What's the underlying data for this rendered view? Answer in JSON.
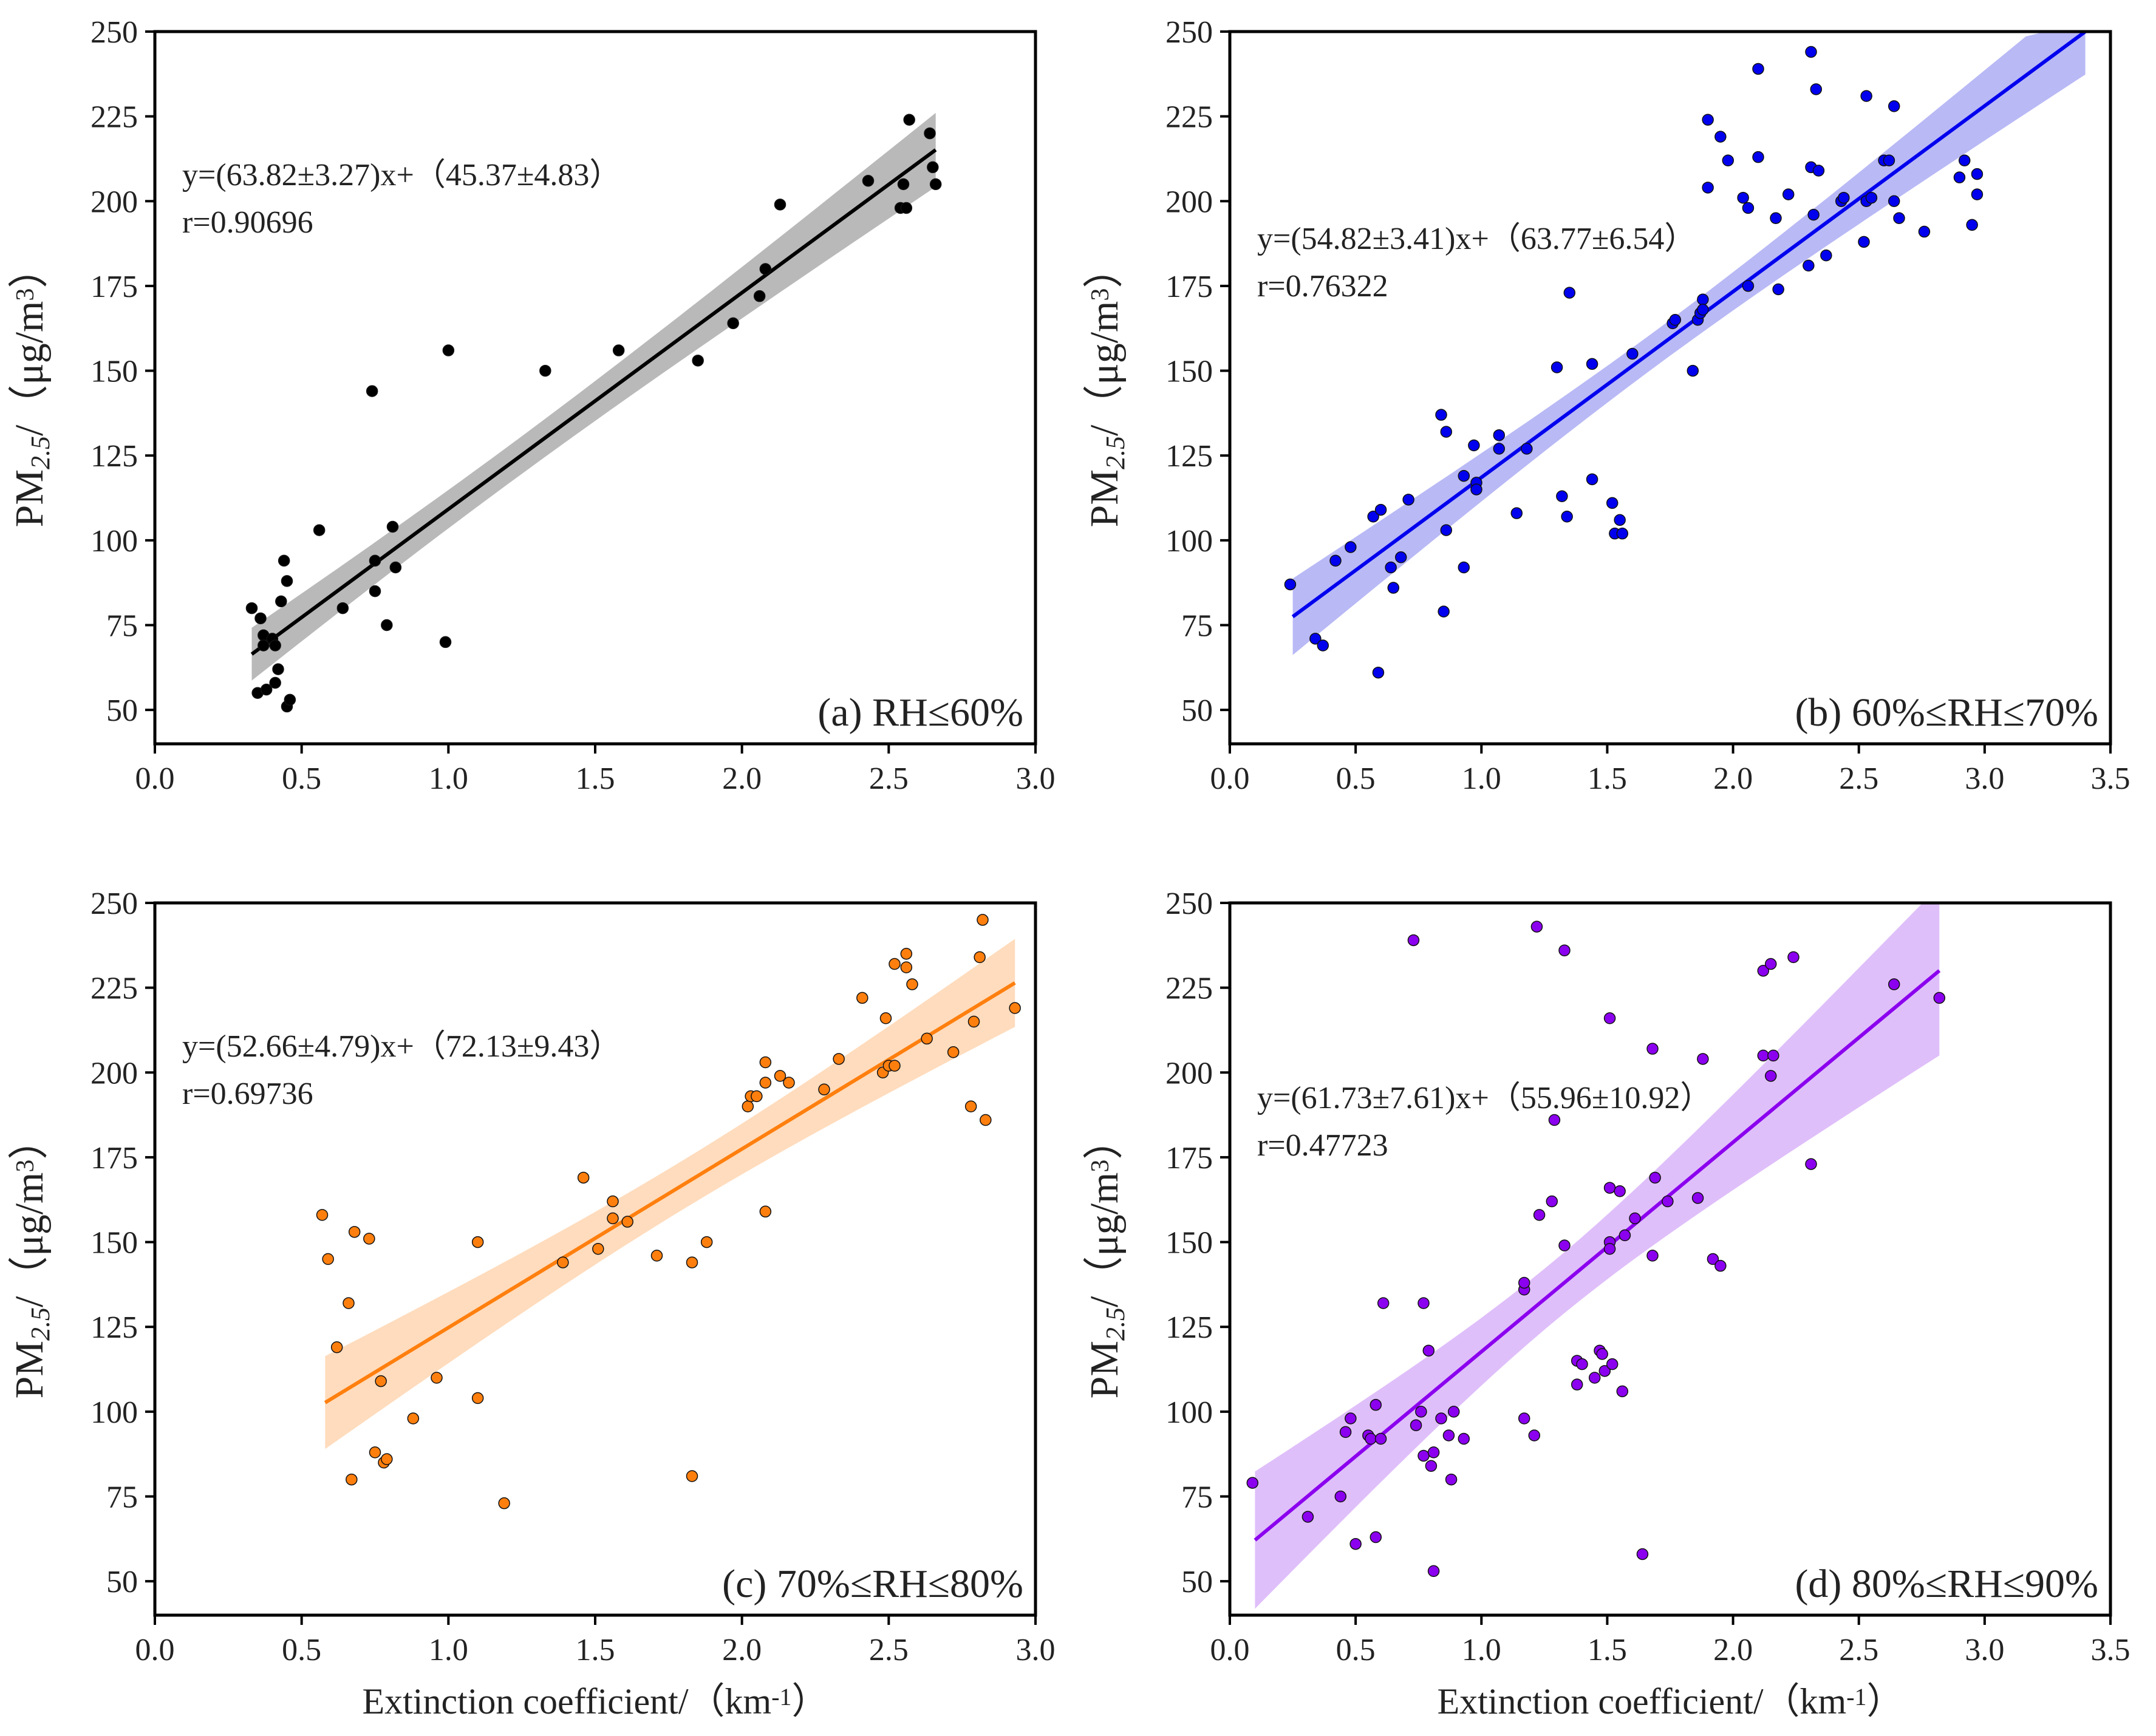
{
  "chart_data": [
    {
      "id": "a",
      "type": "scatter",
      "label": "(a) RH≤60%",
      "color": "#000000",
      "band_color": "#7f7f7f",
      "equation": "y=(63.82±3.27)x+（45.37±4.83）",
      "r_text": "r=0.90696",
      "slope": 63.82,
      "intercept": 45.37,
      "fit_range": [
        0.33,
        2.66
      ],
      "xlim": [
        0,
        3.0
      ],
      "ylim": [
        40,
        250
      ],
      "xticks": [
        0.0,
        0.5,
        1.0,
        1.5,
        2.0,
        2.5,
        3.0
      ],
      "yticks": [
        50,
        75,
        100,
        125,
        150,
        175,
        200,
        225,
        250
      ],
      "ylabel": "PM2.5/（μg/m3）",
      "xlabel": "",
      "points": [
        [
          0.33,
          80
        ],
        [
          0.35,
          55
        ],
        [
          0.36,
          77
        ],
        [
          0.37,
          72
        ],
        [
          0.37,
          69
        ],
        [
          0.38,
          56
        ],
        [
          0.4,
          71
        ],
        [
          0.41,
          58
        ],
        [
          0.41,
          69
        ],
        [
          0.42,
          62
        ],
        [
          0.43,
          82
        ],
        [
          0.44,
          94
        ],
        [
          0.45,
          51
        ],
        [
          0.45,
          88
        ],
        [
          0.46,
          53
        ],
        [
          0.56,
          103
        ],
        [
          0.64,
          80
        ],
        [
          0.74,
          144
        ],
        [
          0.75,
          94
        ],
        [
          0.75,
          85
        ],
        [
          0.79,
          75
        ],
        [
          0.81,
          104
        ],
        [
          0.82,
          92
        ],
        [
          0.99,
          70
        ],
        [
          1.0,
          156
        ],
        [
          1.33,
          150
        ],
        [
          1.58,
          156
        ],
        [
          1.85,
          153
        ],
        [
          1.97,
          164
        ],
        [
          2.06,
          172
        ],
        [
          2.08,
          180
        ],
        [
          2.13,
          199
        ],
        [
          2.43,
          206
        ],
        [
          2.54,
          198
        ],
        [
          2.55,
          205
        ],
        [
          2.56,
          198
        ],
        [
          2.57,
          224
        ],
        [
          2.64,
          220
        ],
        [
          2.65,
          210
        ],
        [
          2.66,
          205
        ]
      ]
    },
    {
      "id": "b",
      "type": "scatter",
      "label": "(b) 60%≤RH≤70%",
      "color": "#0000ee",
      "band_color": "#7f7fee",
      "equation": "y=(54.82±3.41)x+（63.77±6.54）",
      "r_text": "r=0.76322",
      "slope": 54.82,
      "intercept": 63.77,
      "fit_range": [
        0.25,
        3.4
      ],
      "xlim": [
        0,
        3.5
      ],
      "ylim": [
        40,
        250
      ],
      "xticks": [
        0.0,
        0.5,
        1.0,
        1.5,
        2.0,
        2.5,
        3.0,
        3.5
      ],
      "yticks": [
        50,
        75,
        100,
        125,
        150,
        175,
        200,
        225,
        250
      ],
      "ylabel": "PM2.5/（μg/m3）",
      "xlabel": "",
      "points": [
        [
          0.24,
          87
        ],
        [
          0.34,
          71
        ],
        [
          0.37,
          69
        ],
        [
          0.42,
          94
        ],
        [
          0.48,
          98
        ],
        [
          0.57,
          107
        ],
        [
          0.59,
          61
        ],
        [
          0.6,
          109
        ],
        [
          0.64,
          92
        ],
        [
          0.65,
          86
        ],
        [
          0.68,
          95
        ],
        [
          0.71,
          112
        ],
        [
          0.84,
          137
        ],
        [
          0.85,
          79
        ],
        [
          0.86,
          103
        ],
        [
          0.86,
          132
        ],
        [
          0.93,
          92
        ],
        [
          0.93,
          119
        ],
        [
          0.97,
          128
        ],
        [
          0.98,
          117
        ],
        [
          0.98,
          115
        ],
        [
          1.07,
          127
        ],
        [
          1.07,
          131
        ],
        [
          1.14,
          108
        ],
        [
          1.18,
          127
        ],
        [
          1.3,
          151
        ],
        [
          1.32,
          113
        ],
        [
          1.34,
          107
        ],
        [
          1.35,
          173
        ],
        [
          1.44,
          152
        ],
        [
          1.44,
          118
        ],
        [
          1.52,
          111
        ],
        [
          1.53,
          102
        ],
        [
          1.55,
          106
        ],
        [
          1.56,
          102
        ],
        [
          1.6,
          155
        ],
        [
          1.76,
          164
        ],
        [
          1.77,
          165
        ],
        [
          1.84,
          150
        ],
        [
          1.86,
          165
        ],
        [
          1.87,
          167
        ],
        [
          1.88,
          171
        ],
        [
          1.88,
          168
        ],
        [
          1.9,
          204
        ],
        [
          1.9,
          224
        ],
        [
          1.95,
          219
        ],
        [
          1.98,
          212
        ],
        [
          2.04,
          201
        ],
        [
          2.06,
          198
        ],
        [
          2.06,
          175
        ],
        [
          2.1,
          239
        ],
        [
          2.1,
          213
        ],
        [
          2.17,
          195
        ],
        [
          2.18,
          174
        ],
        [
          2.22,
          202
        ],
        [
          2.3,
          181
        ],
        [
          2.31,
          244
        ],
        [
          2.31,
          210
        ],
        [
          2.32,
          196
        ],
        [
          2.33,
          233
        ],
        [
          2.34,
          209
        ],
        [
          2.37,
          184
        ],
        [
          2.43,
          200
        ],
        [
          2.44,
          201
        ],
        [
          2.52,
          188
        ],
        [
          2.53,
          200
        ],
        [
          2.53,
          231
        ],
        [
          2.55,
          201
        ],
        [
          2.6,
          212
        ],
        [
          2.62,
          212
        ],
        [
          2.64,
          228
        ],
        [
          2.64,
          200
        ],
        [
          2.66,
          195
        ],
        [
          2.76,
          191
        ],
        [
          2.9,
          207
        ],
        [
          2.92,
          212
        ],
        [
          2.95,
          193
        ],
        [
          2.97,
          208
        ],
        [
          2.97,
          202
        ]
      ]
    },
    {
      "id": "c",
      "type": "scatter",
      "label": "(c) 70%≤RH≤80%",
      "color": "#ff7f0e",
      "band_color": "#ffbf86",
      "equation": "y=(52.66±4.79)x+（72.13±9.43）",
      "r_text": "r=0.69736",
      "slope": 52.66,
      "intercept": 72.13,
      "fit_range": [
        0.58,
        2.93
      ],
      "xlim": [
        0,
        3.0
      ],
      "ylim": [
        40,
        250
      ],
      "xticks": [
        0.0,
        0.5,
        1.0,
        1.5,
        2.0,
        2.5,
        3.0
      ],
      "yticks": [
        50,
        75,
        100,
        125,
        150,
        175,
        200,
        225,
        250
      ],
      "ylabel": "PM2.5/（μg/m3）",
      "xlabel": "Extinction coefficient/（km-1）",
      "points": [
        [
          0.57,
          158
        ],
        [
          0.59,
          145
        ],
        [
          0.62,
          119
        ],
        [
          0.66,
          132
        ],
        [
          0.67,
          80
        ],
        [
          0.68,
          153
        ],
        [
          0.73,
          151
        ],
        [
          0.75,
          88
        ],
        [
          0.77,
          109
        ],
        [
          0.78,
          85
        ],
        [
          0.79,
          86
        ],
        [
          0.88,
          98
        ],
        [
          0.96,
          110
        ],
        [
          1.1,
          104
        ],
        [
          1.1,
          150
        ],
        [
          1.19,
          73
        ],
        [
          1.39,
          144
        ],
        [
          1.46,
          169
        ],
        [
          1.51,
          148
        ],
        [
          1.56,
          157
        ],
        [
          1.56,
          162
        ],
        [
          1.61,
          156
        ],
        [
          1.71,
          146
        ],
        [
          1.83,
          81
        ],
        [
          1.83,
          144
        ],
        [
          1.88,
          150
        ],
        [
          2.02,
          190
        ],
        [
          2.03,
          193
        ],
        [
          2.05,
          193
        ],
        [
          2.08,
          159
        ],
        [
          2.08,
          197
        ],
        [
          2.08,
          203
        ],
        [
          2.13,
          199
        ],
        [
          2.16,
          197
        ],
        [
          2.28,
          195
        ],
        [
          2.33,
          204
        ],
        [
          2.41,
          222
        ],
        [
          2.48,
          200
        ],
        [
          2.49,
          216
        ],
        [
          2.5,
          202
        ],
        [
          2.52,
          232
        ],
        [
          2.52,
          202
        ],
        [
          2.56,
          235
        ],
        [
          2.56,
          231
        ],
        [
          2.58,
          226
        ],
        [
          2.63,
          210
        ],
        [
          2.72,
          206
        ],
        [
          2.78,
          190
        ],
        [
          2.79,
          215
        ],
        [
          2.81,
          234
        ],
        [
          2.83,
          186
        ],
        [
          2.82,
          245
        ],
        [
          2.93,
          219
        ]
      ]
    },
    {
      "id": "d",
      "type": "scatter",
      "label": "(d) 80%≤RH≤90%",
      "color": "#8b00ee",
      "band_color": "#c48af5",
      "equation": "y=(61.73±7.61)x+（55.96±10.92）",
      "r_text": "r=0.47723",
      "slope": 61.73,
      "intercept": 55.96,
      "fit_range": [
        0.1,
        2.82
      ],
      "xlim": [
        0,
        3.5
      ],
      "ylim": [
        40,
        250
      ],
      "xticks": [
        0.0,
        0.5,
        1.0,
        1.5,
        2.0,
        2.5,
        3.0,
        3.5
      ],
      "yticks": [
        50,
        75,
        100,
        125,
        150,
        175,
        200,
        225,
        250
      ],
      "ylabel": "PM2.5/（μg/m3）",
      "xlabel": "Extinction coefficient/（km-1）",
      "points": [
        [
          0.09,
          79
        ],
        [
          0.31,
          69
        ],
        [
          0.44,
          75
        ],
        [
          0.46,
          94
        ],
        [
          0.48,
          98
        ],
        [
          0.5,
          61
        ],
        [
          0.55,
          93
        ],
        [
          0.56,
          92
        ],
        [
          0.58,
          102
        ],
        [
          0.58,
          63
        ],
        [
          0.6,
          92
        ],
        [
          0.61,
          132
        ],
        [
          0.73,
          239
        ],
        [
          0.74,
          96
        ],
        [
          0.76,
          100
        ],
        [
          0.77,
          132
        ],
        [
          0.77,
          87
        ],
        [
          0.79,
          118
        ],
        [
          0.8,
          84
        ],
        [
          0.81,
          88
        ],
        [
          0.81,
          53
        ],
        [
          0.84,
          98
        ],
        [
          0.87,
          93
        ],
        [
          0.88,
          80
        ],
        [
          0.89,
          100
        ],
        [
          0.93,
          92
        ],
        [
          1.17,
          136
        ],
        [
          1.17,
          138
        ],
        [
          1.17,
          98
        ],
        [
          1.21,
          93
        ],
        [
          1.22,
          243
        ],
        [
          1.23,
          158
        ],
        [
          1.28,
          162
        ],
        [
          1.29,
          186
        ],
        [
          1.33,
          236
        ],
        [
          1.33,
          149
        ],
        [
          1.38,
          115
        ],
        [
          1.38,
          108
        ],
        [
          1.4,
          114
        ],
        [
          1.45,
          110
        ],
        [
          1.47,
          118
        ],
        [
          1.48,
          117
        ],
        [
          1.49,
          112
        ],
        [
          1.51,
          166
        ],
        [
          1.51,
          150
        ],
        [
          1.51,
          148
        ],
        [
          1.51,
          216
        ],
        [
          1.52,
          114
        ],
        [
          1.55,
          165
        ],
        [
          1.56,
          106
        ],
        [
          1.57,
          152
        ],
        [
          1.61,
          157
        ],
        [
          1.64,
          58
        ],
        [
          1.68,
          207
        ],
        [
          1.68,
          146
        ],
        [
          1.69,
          169
        ],
        [
          1.74,
          162
        ],
        [
          1.86,
          163
        ],
        [
          1.88,
          204
        ],
        [
          1.92,
          145
        ],
        [
          1.95,
          143
        ],
        [
          2.12,
          205
        ],
        [
          2.12,
          230
        ],
        [
          2.15,
          232
        ],
        [
          2.16,
          205
        ],
        [
          2.15,
          199
        ],
        [
          2.24,
          234
        ],
        [
          2.31,
          173
        ],
        [
          2.64,
          226
        ],
        [
          2.82,
          222
        ]
      ]
    }
  ]
}
